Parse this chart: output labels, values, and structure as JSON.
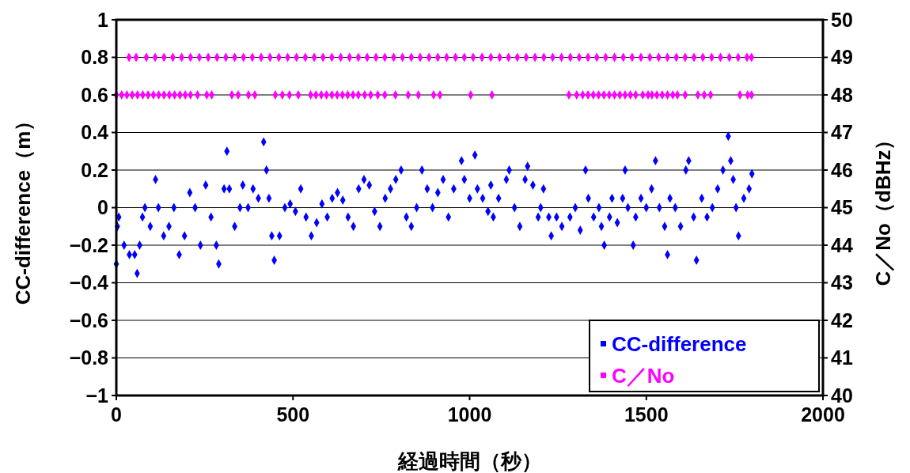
{
  "chart_data": {
    "type": "scatter",
    "xlabel": "経過時間（秒）",
    "ylabel": "CC-difference（m）",
    "y2label": "C／No（dBHz）",
    "xlim": [
      0,
      2000
    ],
    "xticks": [
      0,
      500,
      1000,
      1500,
      2000
    ],
    "ylim": [
      -1,
      1
    ],
    "yticks": [
      -1,
      -0.8,
      -0.6,
      -0.4,
      -0.2,
      0,
      0.2,
      0.4,
      0.6,
      0.8,
      1
    ],
    "y2lim": [
      40,
      50
    ],
    "y2ticks": [
      40,
      41,
      42,
      43,
      44,
      45,
      46,
      47,
      48,
      49,
      50
    ],
    "grid": "y",
    "legend": "bottom right",
    "marker": "diamond",
    "series": [
      {
        "name": "CC-difference",
        "color": "#0000ff",
        "x": [
          0,
          3,
          7,
          22,
          37,
          52,
          59,
          66,
          74,
          81,
          96,
          111,
          119,
          134,
          149,
          163,
          178,
          193,
          208,
          223,
          238,
          253,
          268,
          283,
          290,
          305,
          313,
          320,
          335,
          350,
          358,
          373,
          387,
          402,
          417,
          425,
          432,
          440,
          447,
          462,
          477,
          492,
          507,
          522,
          537,
          552,
          567,
          582,
          597,
          611,
          626,
          641,
          656,
          671,
          686,
          701,
          716,
          731,
          746,
          761,
          776,
          791,
          806,
          821,
          835,
          850,
          865,
          880,
          895,
          910,
          925,
          940,
          955,
          977,
          985,
          1000,
          1015,
          1022,
          1037,
          1052,
          1060,
          1067,
          1082,
          1104,
          1112,
          1127,
          1142,
          1157,
          1164,
          1179,
          1194,
          1201,
          1209,
          1224,
          1231,
          1246,
          1261,
          1284,
          1299,
          1313,
          1328,
          1336,
          1351,
          1366,
          1373,
          1381,
          1396,
          1403,
          1418,
          1433,
          1440,
          1448,
          1463,
          1470,
          1485,
          1500,
          1515,
          1526,
          1537,
          1552,
          1560,
          1567,
          1582,
          1597,
          1612,
          1620,
          1634,
          1642,
          1657,
          1672,
          1687,
          1702,
          1717,
          1732,
          1739,
          1746,
          1754,
          1761,
          1776,
          1791,
          1799
        ],
        "values": [
          -0.3,
          -0.1,
          -0.05,
          -0.2,
          -0.25,
          -0.25,
          -0.35,
          -0.2,
          -0.05,
          0,
          -0.1,
          0.15,
          0,
          -0.15,
          -0.1,
          0,
          -0.25,
          -0.15,
          0.08,
          0,
          -0.2,
          0.12,
          -0.05,
          -0.2,
          -0.3,
          0.1,
          0.3,
          0.1,
          -0.1,
          0,
          0.12,
          0,
          0.1,
          0.05,
          0.35,
          0.2,
          0.05,
          -0.15,
          -0.28,
          -0.15,
          0,
          0.02,
          -0.02,
          0.1,
          -0.05,
          -0.15,
          -0.08,
          0.02,
          -0.05,
          0.05,
          0.08,
          0.04,
          -0.05,
          -0.1,
          0.1,
          0.15,
          0.12,
          -0.02,
          -0.1,
          0.05,
          0.1,
          0.15,
          0.2,
          -0.05,
          -0.1,
          0,
          0.2,
          0.1,
          0,
          0.08,
          0.15,
          -0.05,
          0.1,
          0.25,
          0.15,
          0.05,
          0.28,
          0.1,
          0.05,
          -0.02,
          0.12,
          -0.05,
          0.05,
          0.15,
          0.2,
          0,
          -0.1,
          0.15,
          0.22,
          0.12,
          -0.05,
          0,
          0.1,
          -0.05,
          -0.15,
          -0.05,
          -0.1,
          -0.05,
          0,
          -0.12,
          0.2,
          0.05,
          -0.05,
          0,
          -0.1,
          -0.2,
          -0.05,
          0.05,
          -0.08,
          0.05,
          0.2,
          0,
          -0.2,
          -0.05,
          0.05,
          0,
          0.1,
          0.25,
          0,
          -0.1,
          -0.25,
          0.05,
          0,
          -0.1,
          0.2,
          0.25,
          -0.05,
          -0.28,
          0.05,
          -0.05,
          0,
          0.1,
          0.2,
          0.38,
          0.25,
          0.15,
          0,
          -0.15,
          0.05,
          0.1,
          0.18
        ]
      },
      {
        "name": "C／No",
        "color": "#ff00ff",
        "axis": "y2",
        "x": [
          36,
          56,
          85,
          110,
          135,
          160,
          185,
          210,
          235,
          260,
          285,
          310,
          335,
          360,
          385,
          410,
          435,
          460,
          485,
          510,
          535,
          560,
          585,
          610,
          635,
          660,
          685,
          710,
          735,
          760,
          785,
          810,
          835,
          860,
          885,
          910,
          935,
          960,
          985,
          1010,
          1035,
          1060,
          1085,
          1110,
          1135,
          1160,
          1185,
          1210,
          1235,
          1260,
          1285,
          1310,
          1335,
          1360,
          1385,
          1410,
          1435,
          1460,
          1485,
          1510,
          1535,
          1560,
          1585,
          1610,
          1635,
          1660,
          1685,
          1710,
          1735,
          1760,
          1785,
          1798,
          0,
          15,
          30,
          45,
          60,
          75,
          90,
          105,
          120,
          135,
          150,
          165,
          180,
          195,
          210,
          230,
          256,
          270,
          327,
          345,
          374,
          392,
          450,
          470,
          490,
          515,
          550,
          565,
          580,
          595,
          610,
          625,
          640,
          655,
          670,
          685,
          703,
          720,
          740,
          760,
          790,
          826,
          855,
          898,
          916,
          1003,
          1063,
          1281,
          1303,
          1320,
          1335,
          1350,
          1365,
          1380,
          1395,
          1410,
          1425,
          1440,
          1455,
          1470,
          1490,
          1505,
          1516,
          1530,
          1545,
          1560,
          1575,
          1588,
          1610,
          1646,
          1664,
          1682,
          1765,
          1787,
          1798
        ],
        "values": [
          49,
          49,
          49,
          49,
          49,
          49,
          49,
          49,
          49,
          49,
          49,
          49,
          49,
          49,
          49,
          49,
          49,
          49,
          49,
          49,
          49,
          49,
          49,
          49,
          49,
          49,
          49,
          49,
          49,
          49,
          49,
          49,
          49,
          49,
          49,
          49,
          49,
          49,
          49,
          49,
          49,
          49,
          49,
          49,
          49,
          49,
          49,
          49,
          49,
          49,
          49,
          49,
          49,
          49,
          49,
          49,
          49,
          49,
          49,
          49,
          49,
          49,
          49,
          49,
          49,
          49,
          49,
          49,
          49,
          49,
          49,
          49,
          48,
          48,
          48,
          48,
          48,
          48,
          48,
          48,
          48,
          48,
          48,
          48,
          48,
          48,
          48,
          48,
          48,
          48,
          48,
          48,
          48,
          48,
          48,
          48,
          48,
          48,
          48,
          48,
          48,
          48,
          48,
          48,
          48,
          48,
          48,
          48,
          48,
          48,
          48,
          48,
          48,
          48,
          48,
          48,
          48,
          48,
          48,
          48,
          48,
          48,
          48,
          48,
          48,
          48,
          48,
          48,
          48,
          48,
          48,
          48,
          48,
          48,
          48,
          48,
          48,
          48,
          48,
          48,
          48,
          48,
          48,
          48,
          48,
          48,
          48
        ]
      }
    ]
  }
}
